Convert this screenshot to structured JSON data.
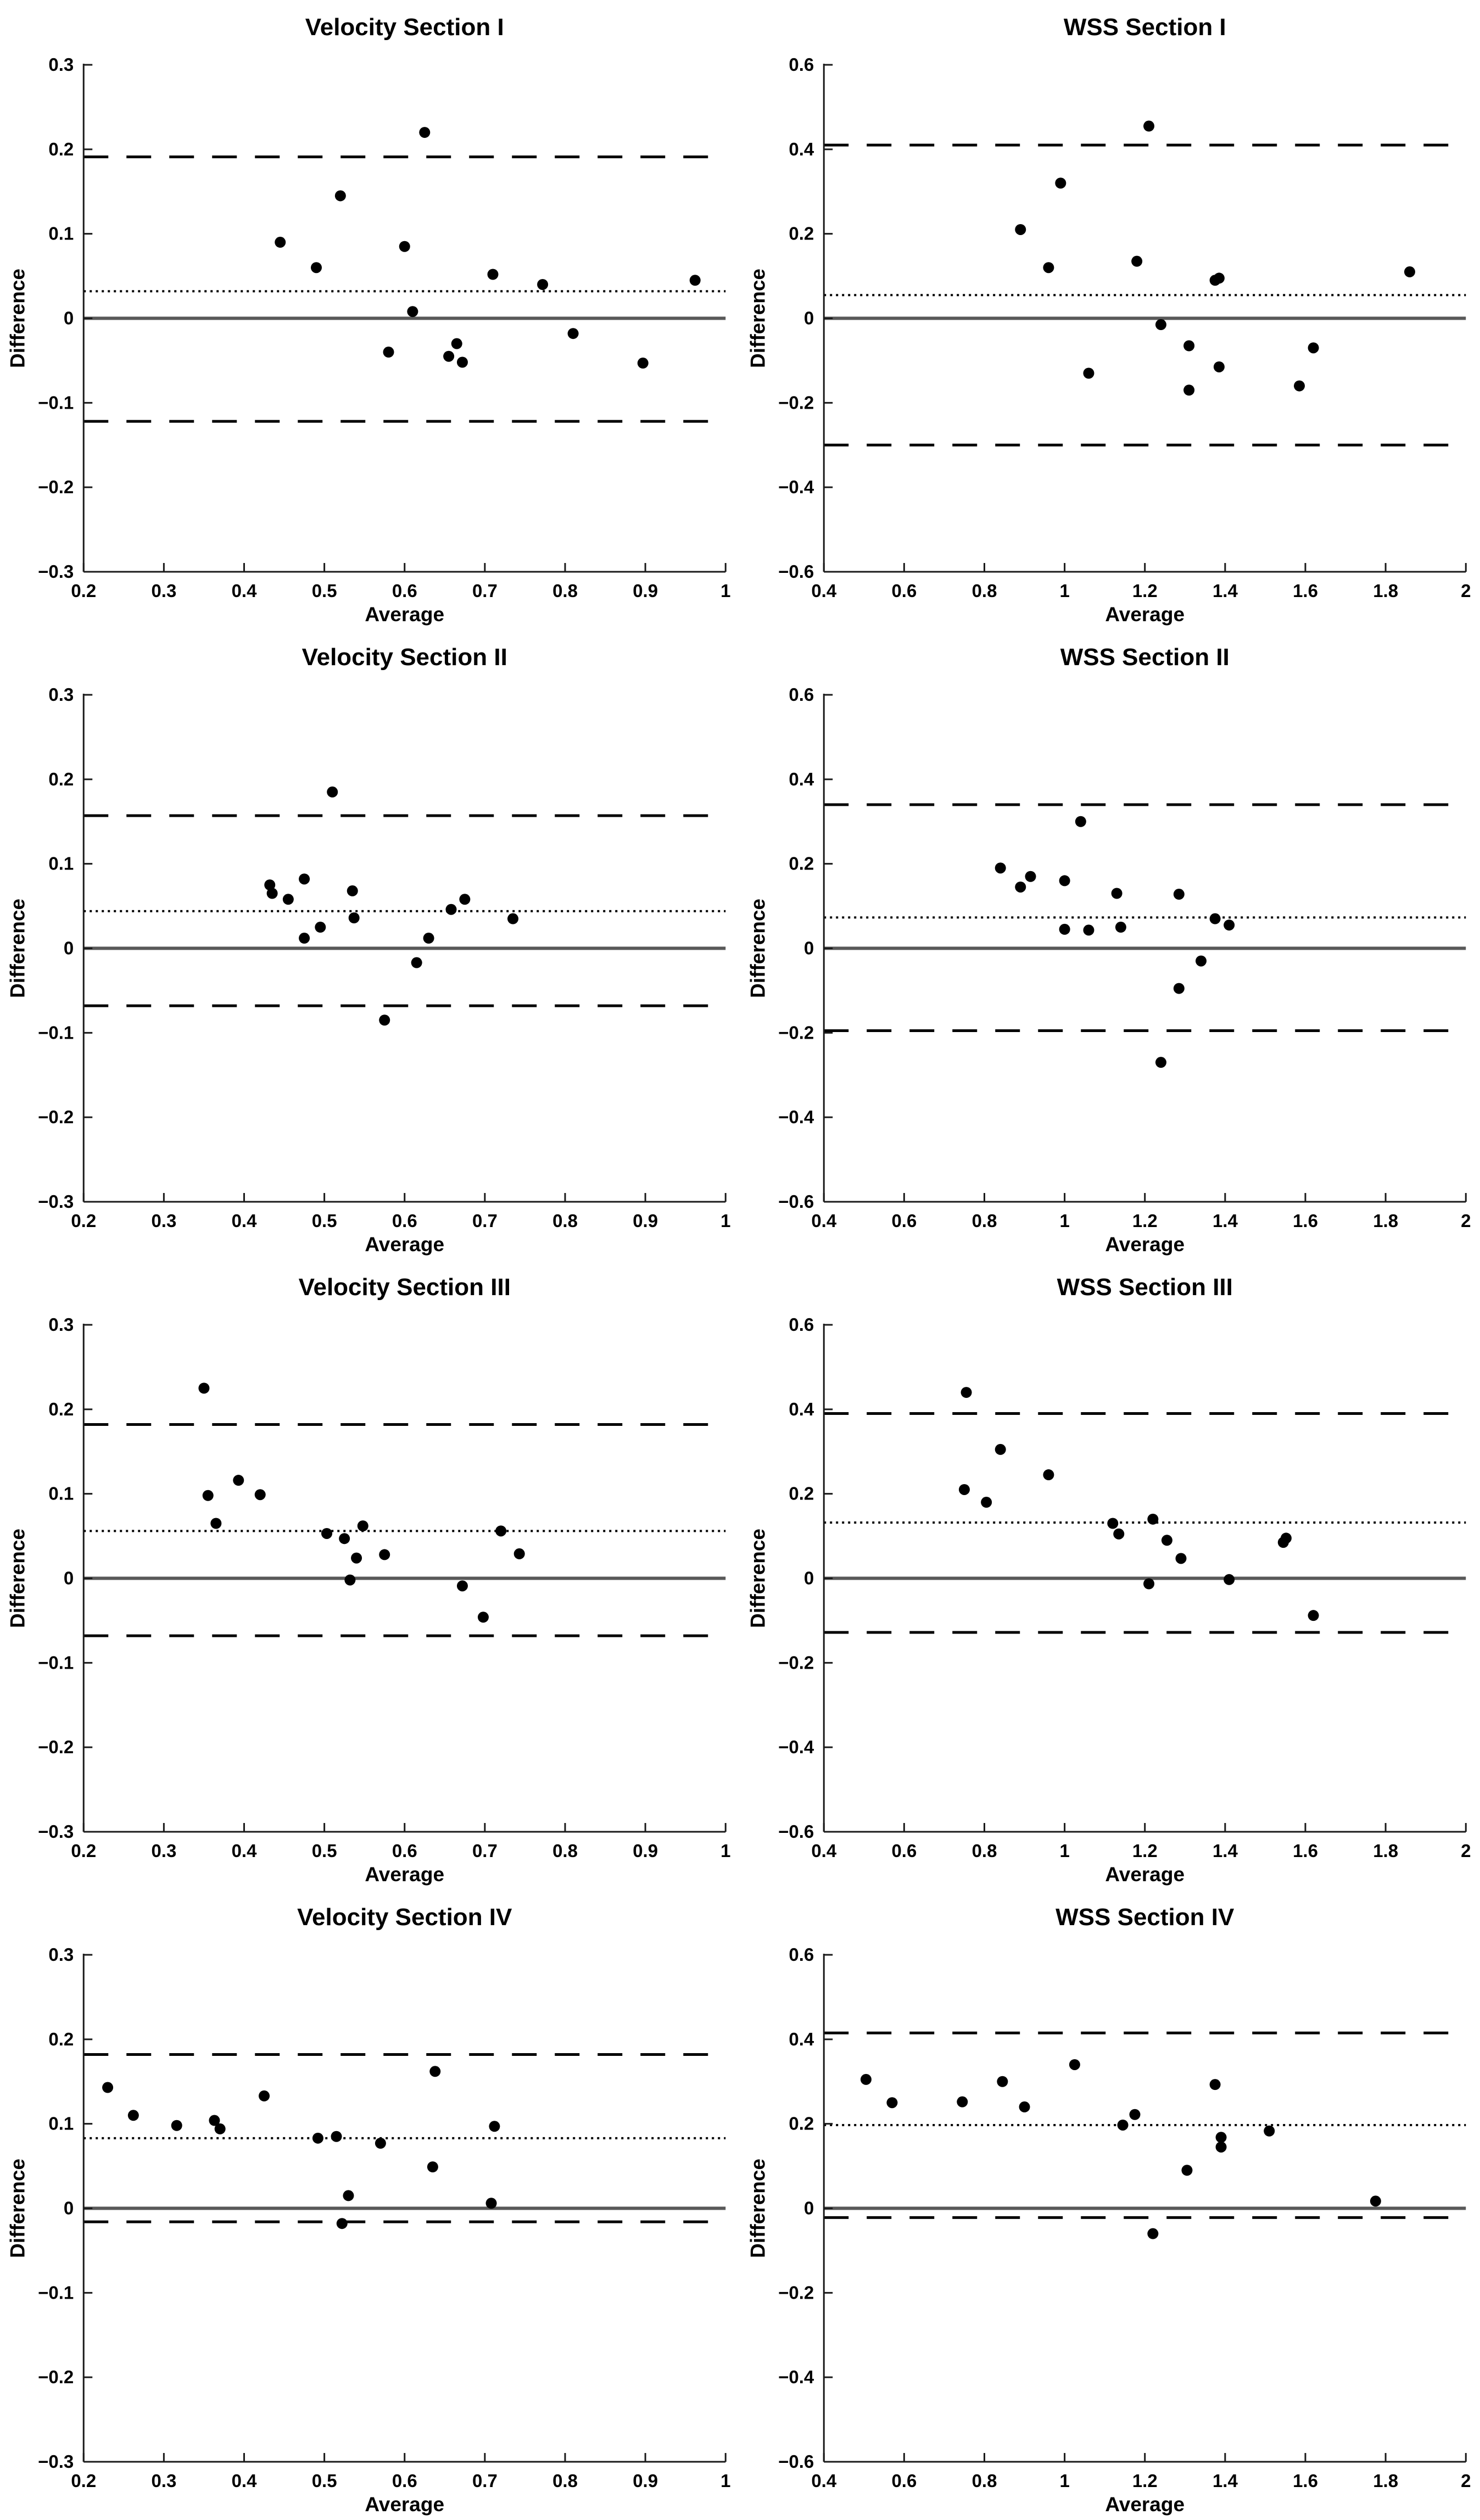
{
  "page": {
    "background": "#ffffff",
    "figure_type": "Bland-Altman agreement plots, 4 rows x 2 columns"
  },
  "colors": {
    "point": "#000000",
    "loa_line": "#000000",
    "mean_line": "#000000",
    "zero_line": "#595959",
    "axis": "#1a1a1a",
    "text": "#000000"
  },
  "chart_data": [
    {
      "type": "scatter",
      "title": "Velocity Section I",
      "xlabel": "Average",
      "ylabel": "Difference",
      "xlim": [
        0.2,
        1
      ],
      "ylim": [
        -0.3,
        0.3
      ],
      "xticks": [
        0.2,
        0.3,
        0.4,
        0.5,
        0.6,
        0.7,
        0.8,
        0.9,
        1
      ],
      "yticks": [
        -0.3,
        -0.2,
        -0.1,
        0,
        0.1,
        0.2,
        0.3
      ],
      "xtick_labels": [
        "0.2",
        "0.3",
        "0.4",
        "0.5",
        "0.6",
        "0.7",
        "0.8",
        "0.9",
        "1"
      ],
      "ytick_labels": [
        "−0.3",
        "−0.2",
        "−0.1",
        "0",
        "0.1",
        "0.2",
        "0.3"
      ],
      "grid": false,
      "legend": null,
      "ref_lines": {
        "upper_loa": 0.191,
        "mean": 0.032,
        "zero": 0,
        "lower_loa": -0.122
      },
      "points": [
        [
          0.445,
          0.09
        ],
        [
          0.49,
          0.06
        ],
        [
          0.52,
          0.145
        ],
        [
          0.58,
          -0.04
        ],
        [
          0.6,
          0.085
        ],
        [
          0.61,
          0.008
        ],
        [
          0.625,
          0.22
        ],
        [
          0.655,
          -0.045
        ],
        [
          0.665,
          -0.03
        ],
        [
          0.672,
          -0.052
        ],
        [
          0.71,
          0.052
        ],
        [
          0.772,
          0.04
        ],
        [
          0.81,
          -0.018
        ],
        [
          0.897,
          -0.053
        ],
        [
          0.962,
          0.045
        ]
      ]
    },
    {
      "type": "scatter",
      "title": "WSS Section I",
      "xlabel": "Average",
      "ylabel": "Difference",
      "xlim": [
        0.4,
        2
      ],
      "ylim": [
        -0.6,
        0.6
      ],
      "xticks": [
        0.4,
        0.6,
        0.8,
        1,
        1.2,
        1.4,
        1.6,
        1.8,
        2
      ],
      "yticks": [
        -0.6,
        -0.4,
        -0.2,
        0,
        0.2,
        0.4,
        0.6
      ],
      "xtick_labels": [
        "0.4",
        "0.6",
        "0.8",
        "1",
        "1.2",
        "1.4",
        "1.6",
        "1.8",
        "2"
      ],
      "ytick_labels": [
        "−0.6",
        "−0.4",
        "−0.2",
        "0",
        "0.2",
        "0.4",
        "0.6"
      ],
      "grid": false,
      "legend": null,
      "ref_lines": {
        "upper_loa": 0.41,
        "mean": 0.055,
        "zero": 0,
        "lower_loa": -0.3
      },
      "points": [
        [
          0.89,
          0.21
        ],
        [
          0.96,
          0.12
        ],
        [
          0.99,
          0.32
        ],
        [
          1.06,
          -0.13
        ],
        [
          1.18,
          0.135
        ],
        [
          1.21,
          0.455
        ],
        [
          1.24,
          -0.015
        ],
        [
          1.31,
          -0.065
        ],
        [
          1.31,
          -0.17
        ],
        [
          1.375,
          0.09
        ],
        [
          1.385,
          0.095
        ],
        [
          1.385,
          -0.115
        ],
        [
          1.585,
          -0.16
        ],
        [
          1.62,
          -0.07
        ],
        [
          1.86,
          0.11
        ]
      ]
    },
    {
      "type": "scatter",
      "title": "Velocity Section II",
      "xlabel": "Average",
      "ylabel": "Difference",
      "xlim": [
        0.2,
        1
      ],
      "ylim": [
        -0.3,
        0.3
      ],
      "xticks": [
        0.2,
        0.3,
        0.4,
        0.5,
        0.6,
        0.7,
        0.8,
        0.9,
        1
      ],
      "yticks": [
        -0.3,
        -0.2,
        -0.1,
        0,
        0.1,
        0.2,
        0.3
      ],
      "xtick_labels": [
        "0.2",
        "0.3",
        "0.4",
        "0.5",
        "0.6",
        "0.7",
        "0.8",
        "0.9",
        "1"
      ],
      "ytick_labels": [
        "−0.3",
        "−0.2",
        "−0.1",
        "0",
        "0.1",
        "0.2",
        "0.3"
      ],
      "grid": false,
      "legend": null,
      "ref_lines": {
        "upper_loa": 0.157,
        "mean": 0.044,
        "zero": 0,
        "lower_loa": -0.068
      },
      "points": [
        [
          0.432,
          0.075
        ],
        [
          0.435,
          0.065
        ],
        [
          0.455,
          0.058
        ],
        [
          0.475,
          0.082
        ],
        [
          0.475,
          0.012
        ],
        [
          0.495,
          0.025
        ],
        [
          0.51,
          0.185
        ],
        [
          0.535,
          0.068
        ],
        [
          0.537,
          0.036
        ],
        [
          0.575,
          -0.085
        ],
        [
          0.615,
          -0.017
        ],
        [
          0.63,
          0.012
        ],
        [
          0.658,
          0.046
        ],
        [
          0.675,
          0.058
        ],
        [
          0.735,
          0.035
        ]
      ]
    },
    {
      "type": "scatter",
      "title": "WSS Section II",
      "xlabel": "Average",
      "ylabel": "Difference",
      "xlim": [
        0.4,
        2
      ],
      "ylim": [
        -0.6,
        0.6
      ],
      "xticks": [
        0.4,
        0.6,
        0.8,
        1,
        1.2,
        1.4,
        1.6,
        1.8,
        2
      ],
      "yticks": [
        -0.6,
        -0.4,
        -0.2,
        0,
        0.2,
        0.4,
        0.6
      ],
      "xtick_labels": [
        "0.4",
        "0.6",
        "0.8",
        "1",
        "1.2",
        "1.4",
        "1.6",
        "1.8",
        "2"
      ],
      "ytick_labels": [
        "−0.6",
        "−0.4",
        "−0.2",
        "0",
        "0.2",
        "0.4",
        "0.6"
      ],
      "grid": false,
      "legend": null,
      "ref_lines": {
        "upper_loa": 0.34,
        "mean": 0.073,
        "zero": 0,
        "lower_loa": -0.195
      },
      "points": [
        [
          0.84,
          0.19
        ],
        [
          0.89,
          0.145
        ],
        [
          0.915,
          0.17
        ],
        [
          1.0,
          0.16
        ],
        [
          1.0,
          0.045
        ],
        [
          1.04,
          0.3
        ],
        [
          1.06,
          0.043
        ],
        [
          1.13,
          0.13
        ],
        [
          1.14,
          0.05
        ],
        [
          1.24,
          -0.27
        ],
        [
          1.285,
          0.128
        ],
        [
          1.285,
          -0.095
        ],
        [
          1.34,
          -0.03
        ],
        [
          1.375,
          0.07
        ],
        [
          1.41,
          0.055
        ]
      ]
    },
    {
      "type": "scatter",
      "title": "Velocity Section III",
      "xlabel": "Average",
      "ylabel": "Difference",
      "xlim": [
        0.2,
        1
      ],
      "ylim": [
        -0.3,
        0.3
      ],
      "xticks": [
        0.2,
        0.3,
        0.4,
        0.5,
        0.6,
        0.7,
        0.8,
        0.9,
        1
      ],
      "yticks": [
        -0.3,
        -0.2,
        -0.1,
        0,
        0.1,
        0.2,
        0.3
      ],
      "xtick_labels": [
        "0.2",
        "0.3",
        "0.4",
        "0.5",
        "0.6",
        "0.7",
        "0.8",
        "0.9",
        "1"
      ],
      "ytick_labels": [
        "−0.3",
        "−0.2",
        "−0.1",
        "0",
        "0.1",
        "0.2",
        "0.3"
      ],
      "grid": false,
      "legend": null,
      "ref_lines": {
        "upper_loa": 0.182,
        "mean": 0.056,
        "zero": 0,
        "lower_loa": -0.068
      },
      "points": [
        [
          0.35,
          0.225
        ],
        [
          0.355,
          0.098
        ],
        [
          0.365,
          0.065
        ],
        [
          0.393,
          0.116
        ],
        [
          0.42,
          0.099
        ],
        [
          0.503,
          0.053
        ],
        [
          0.525,
          0.047
        ],
        [
          0.532,
          -0.002
        ],
        [
          0.54,
          0.024
        ],
        [
          0.548,
          0.062
        ],
        [
          0.575,
          0.028
        ],
        [
          0.672,
          -0.009
        ],
        [
          0.698,
          -0.046
        ],
        [
          0.72,
          0.056
        ],
        [
          0.743,
          0.029
        ]
      ]
    },
    {
      "type": "scatter",
      "title": "WSS Section III",
      "xlabel": "Average",
      "ylabel": "Difference",
      "xlim": [
        0.4,
        2
      ],
      "ylim": [
        -0.6,
        0.6
      ],
      "xticks": [
        0.4,
        0.6,
        0.8,
        1,
        1.2,
        1.4,
        1.6,
        1.8,
        2
      ],
      "yticks": [
        -0.6,
        -0.4,
        -0.2,
        0,
        0.2,
        0.4,
        0.6
      ],
      "xtick_labels": [
        "0.4",
        "0.6",
        "0.8",
        "1",
        "1.2",
        "1.4",
        "1.6",
        "1.8",
        "2"
      ],
      "ytick_labels": [
        "−0.6",
        "−0.4",
        "−0.2",
        "0",
        "0.2",
        "0.4",
        "0.6"
      ],
      "grid": false,
      "legend": null,
      "ref_lines": {
        "upper_loa": 0.39,
        "mean": 0.132,
        "zero": 0,
        "lower_loa": -0.128
      },
      "points": [
        [
          0.75,
          0.21
        ],
        [
          0.755,
          0.44
        ],
        [
          0.805,
          0.18
        ],
        [
          0.84,
          0.305
        ],
        [
          0.96,
          0.245
        ],
        [
          1.12,
          0.13
        ],
        [
          1.135,
          0.105
        ],
        [
          1.21,
          -0.013
        ],
        [
          1.22,
          0.14
        ],
        [
          1.255,
          0.09
        ],
        [
          1.29,
          0.047
        ],
        [
          1.41,
          -0.003
        ],
        [
          1.545,
          0.085
        ],
        [
          1.552,
          0.095
        ],
        [
          1.62,
          -0.088
        ]
      ]
    },
    {
      "type": "scatter",
      "title": "Velocity Section IV",
      "xlabel": "Average",
      "ylabel": "Difference",
      "xlim": [
        0.2,
        1
      ],
      "ylim": [
        -0.3,
        0.3
      ],
      "xticks": [
        0.2,
        0.3,
        0.4,
        0.5,
        0.6,
        0.7,
        0.8,
        0.9,
        1
      ],
      "yticks": [
        -0.3,
        -0.2,
        -0.1,
        0,
        0.1,
        0.2,
        0.3
      ],
      "xtick_labels": [
        "0.2",
        "0.3",
        "0.4",
        "0.5",
        "0.6",
        "0.7",
        "0.8",
        "0.9",
        "1"
      ],
      "ytick_labels": [
        "−0.3",
        "−0.2",
        "−0.1",
        "0",
        "0.1",
        "0.2",
        "0.3"
      ],
      "grid": false,
      "legend": null,
      "ref_lines": {
        "upper_loa": 0.182,
        "mean": 0.083,
        "zero": 0,
        "lower_loa": -0.016
      },
      "points": [
        [
          0.23,
          0.143
        ],
        [
          0.262,
          0.11
        ],
        [
          0.316,
          0.098
        ],
        [
          0.363,
          0.104
        ],
        [
          0.37,
          0.094
        ],
        [
          0.425,
          0.133
        ],
        [
          0.492,
          0.083
        ],
        [
          0.515,
          0.085
        ],
        [
          0.522,
          -0.018
        ],
        [
          0.53,
          0.015
        ],
        [
          0.57,
          0.077
        ],
        [
          0.635,
          0.049
        ],
        [
          0.638,
          0.162
        ],
        [
          0.708,
          0.006
        ],
        [
          0.712,
          0.097
        ]
      ]
    },
    {
      "type": "scatter",
      "title": "WSS Section IV",
      "xlabel": "Average",
      "ylabel": "Difference",
      "xlim": [
        0.4,
        2
      ],
      "ylim": [
        -0.6,
        0.6
      ],
      "xticks": [
        0.4,
        0.6,
        0.8,
        1,
        1.2,
        1.4,
        1.6,
        1.8,
        2
      ],
      "yticks": [
        -0.6,
        -0.4,
        -0.2,
        0,
        0.2,
        0.4,
        0.6
      ],
      "xtick_labels": [
        "0.4",
        "0.6",
        "0.8",
        "1",
        "1.2",
        "1.4",
        "1.6",
        "1.8",
        "2"
      ],
      "ytick_labels": [
        "−0.6",
        "−0.4",
        "−0.2",
        "0",
        "0.2",
        "0.4",
        "0.6"
      ],
      "grid": false,
      "legend": null,
      "ref_lines": {
        "upper_loa": 0.415,
        "mean": 0.197,
        "zero": 0,
        "lower_loa": -0.022
      },
      "points": [
        [
          0.505,
          0.305
        ],
        [
          0.57,
          0.25
        ],
        [
          0.745,
          0.252
        ],
        [
          0.845,
          0.3
        ],
        [
          0.9,
          0.24
        ],
        [
          1.025,
          0.34
        ],
        [
          1.145,
          0.197
        ],
        [
          1.175,
          0.222
        ],
        [
          1.22,
          -0.06
        ],
        [
          1.305,
          0.09
        ],
        [
          1.375,
          0.293
        ],
        [
          1.39,
          0.168
        ],
        [
          1.39,
          0.145
        ],
        [
          1.51,
          0.183
        ],
        [
          1.775,
          0.017
        ]
      ]
    }
  ]
}
